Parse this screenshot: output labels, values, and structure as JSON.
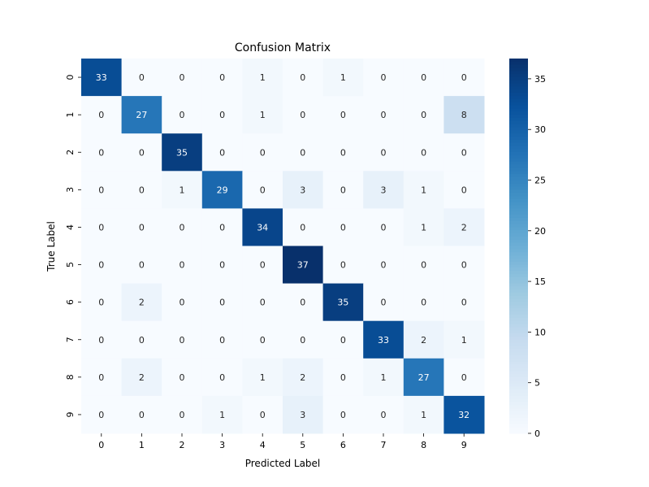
{
  "chart_data": {
    "type": "heatmap",
    "title": "Confusion Matrix",
    "xlabel": "Predicted Label",
    "ylabel": "True Label",
    "x_categories": [
      "0",
      "1",
      "2",
      "3",
      "4",
      "5",
      "6",
      "7",
      "8",
      "9"
    ],
    "y_categories": [
      "0",
      "1",
      "2",
      "3",
      "4",
      "5",
      "6",
      "7",
      "8",
      "9"
    ],
    "values": [
      [
        33,
        0,
        0,
        0,
        1,
        0,
        1,
        0,
        0,
        0
      ],
      [
        0,
        27,
        0,
        0,
        1,
        0,
        0,
        0,
        0,
        8
      ],
      [
        0,
        0,
        35,
        0,
        0,
        0,
        0,
        0,
        0,
        0
      ],
      [
        0,
        0,
        1,
        29,
        0,
        3,
        0,
        3,
        1,
        0
      ],
      [
        0,
        0,
        0,
        0,
        34,
        0,
        0,
        0,
        1,
        2
      ],
      [
        0,
        0,
        0,
        0,
        0,
        37,
        0,
        0,
        0,
        0
      ],
      [
        0,
        2,
        0,
        0,
        0,
        0,
        35,
        0,
        0,
        0
      ],
      [
        0,
        0,
        0,
        0,
        0,
        0,
        0,
        33,
        2,
        1
      ],
      [
        0,
        2,
        0,
        0,
        1,
        2,
        0,
        1,
        27,
        0
      ],
      [
        0,
        0,
        0,
        1,
        0,
        3,
        0,
        0,
        1,
        32
      ]
    ],
    "colormap": "Blues",
    "color_range": [
      0,
      37
    ],
    "colorbar_ticks": [
      "0",
      "5",
      "10",
      "15",
      "20",
      "25",
      "30",
      "35"
    ],
    "colorbar_tick_values": [
      0,
      5,
      10,
      15,
      20,
      25,
      30,
      35
    ],
    "annotations": true,
    "grid": false,
    "colors": {
      "low": "#f7fbff",
      "high": "#08306b",
      "text_dark": "#262626",
      "text_light": "#ffffff"
    }
  }
}
